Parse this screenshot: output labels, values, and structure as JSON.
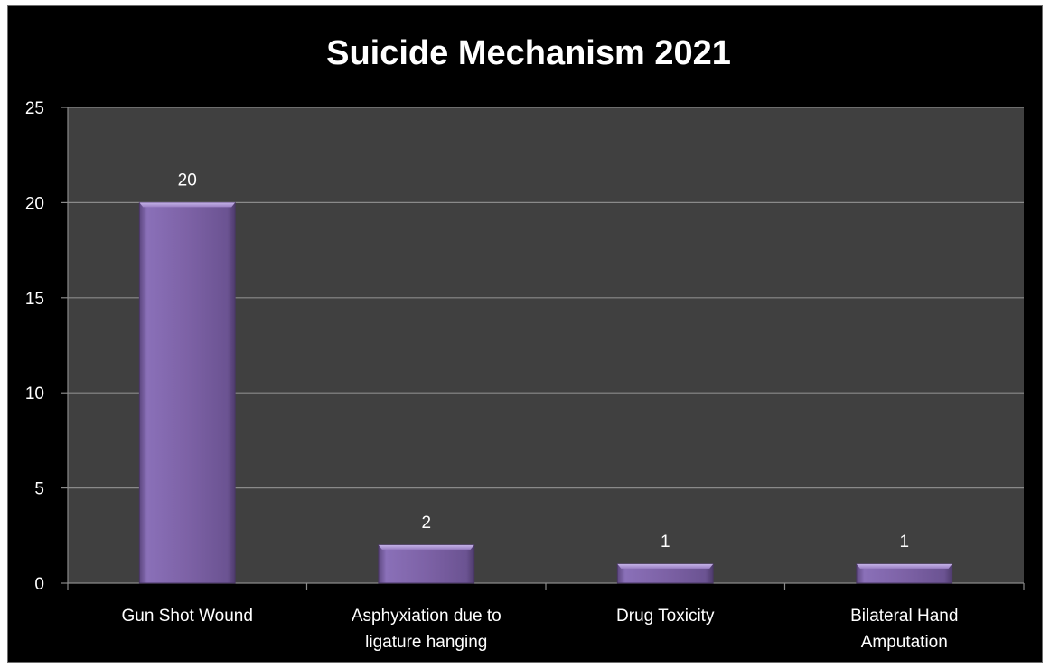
{
  "chart_data": {
    "type": "bar",
    "title": "Suicide Mechanism 2021",
    "xlabel": "",
    "ylabel": "",
    "categories": [
      [
        "Gun Shot Wound"
      ],
      [
        "Asphyxiation due to",
        "ligature hanging"
      ],
      [
        "Drug Toxicity"
      ],
      [
        "Bilateral Hand",
        "Amputation"
      ]
    ],
    "values": [
      20,
      2,
      1,
      1
    ],
    "value_labels": [
      "20",
      "2",
      "1",
      "1"
    ],
    "ylim": [
      0,
      25
    ],
    "yticks": [
      "0",
      "5",
      "10",
      "15",
      "20",
      "25"
    ],
    "grid": true,
    "legend": "none",
    "colors": {
      "bar": "#8064a2",
      "bar_light": "#9a80c4",
      "bar_dark": "#604a82",
      "plot_background": "#404040",
      "page_background": "#000000",
      "gridline": "#8a8a8a",
      "text": "#ffffff"
    }
  }
}
